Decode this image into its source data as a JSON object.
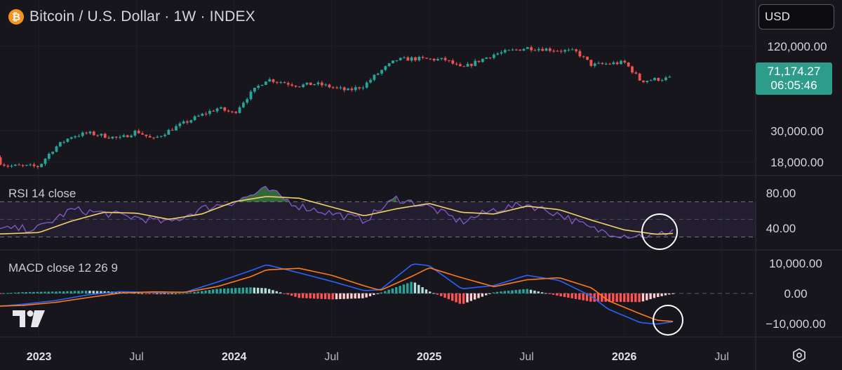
{
  "header": {
    "title": "Bitcoin / U.S. Dollar · 1W · INDEX",
    "currency": "USD",
    "btc_glyph": "₿"
  },
  "price_tag": {
    "price": "71,174.27",
    "countdown": "06:05:46",
    "color": "#2e9c8a"
  },
  "colors": {
    "up": "#26a69a",
    "down": "#ef5350",
    "rsi": "#7e57c2",
    "rsi_ma": "#f3d266",
    "macd": "#2962ff",
    "signal": "#ff7a1a"
  },
  "chart_data": [
    {
      "type": "candlestick",
      "pane": "price",
      "title": "Bitcoin / U.S. Dollar · 1W · INDEX",
      "scale": "log",
      "yticks": [
        "120,000.00",
        "30,000.00",
        "18,000.00"
      ],
      "ytick_values": [
        120000,
        30000,
        18000
      ],
      "ylim": [
        14500,
        165000
      ],
      "x_ticks": [
        "2023",
        "Jul",
        "2024",
        "Jul",
        "2025",
        "Jul",
        "2026",
        "Jul"
      ],
      "close_anchors": [
        [
          "2022-10",
          19500
        ],
        [
          "2022-11",
          17000
        ],
        [
          "2023-01",
          16800
        ],
        [
          "2023-02",
          23000
        ],
        [
          "2023-03",
          27500
        ],
        [
          "2023-04",
          29000
        ],
        [
          "2023-06",
          26500
        ],
        [
          "2023-07",
          30000
        ],
        [
          "2023-08",
          26000
        ],
        [
          "2023-10",
          34500
        ],
        [
          "2023-12",
          43500
        ],
        [
          "2024-01",
          40000
        ],
        [
          "2024-03",
          70000
        ],
        [
          "2024-05",
          63000
        ],
        [
          "2024-06",
          65000
        ],
        [
          "2024-08",
          58000
        ],
        [
          "2024-09",
          63000
        ],
        [
          "2024-11",
          96000
        ],
        [
          "2024-12",
          98000
        ],
        [
          "2025-02",
          96000
        ],
        [
          "2025-03",
          83000
        ],
        [
          "2025-04",
          94000
        ],
        [
          "2025-05",
          105000
        ],
        [
          "2025-07",
          117000
        ],
        [
          "2025-08",
          115000
        ],
        [
          "2025-09",
          112000
        ],
        [
          "2025-10",
          110000
        ],
        [
          "2025-11",
          88000
        ],
        [
          "2026-01",
          92000
        ],
        [
          "2026-02",
          68000
        ],
        [
          "2026-03",
          70000
        ],
        [
          "2026-04",
          71174.27
        ]
      ],
      "last_price": 71174.27
    },
    {
      "type": "line",
      "pane": "rsi",
      "title": "RSI 14 close",
      "yticks": [
        "80.00",
        "40.00"
      ],
      "ytick_values": [
        80,
        40
      ],
      "bands": [
        70,
        50,
        30
      ],
      "series": [
        {
          "name": "RSI",
          "x": [
            "2022-10",
            "2023-01",
            "2023-03",
            "2023-05",
            "2023-07",
            "2023-09",
            "2023-11",
            "2024-01",
            "2024-03",
            "2024-05",
            "2024-07",
            "2024-09",
            "2024-11",
            "2025-01",
            "2025-03",
            "2025-05",
            "2025-07",
            "2025-09",
            "2025-11",
            "2026-01",
            "2026-03",
            "2026-04"
          ],
          "values": [
            38,
            40,
            61,
            57,
            52,
            46,
            62,
            70,
            84,
            65,
            57,
            49,
            74,
            64,
            47,
            61,
            67,
            56,
            39,
            32,
            31,
            38
          ]
        },
        {
          "name": "RSI MA",
          "x": [
            "2022-10",
            "2023-01",
            "2023-03",
            "2023-05",
            "2023-07",
            "2023-09",
            "2023-11",
            "2024-01",
            "2024-03",
            "2024-05",
            "2024-07",
            "2024-09",
            "2024-11",
            "2025-01",
            "2025-03",
            "2025-05",
            "2025-07",
            "2025-09",
            "2025-11",
            "2026-01",
            "2026-03",
            "2026-04"
          ],
          "values": [
            33,
            35,
            48,
            58,
            57,
            50,
            56,
            70,
            76,
            74,
            64,
            54,
            62,
            68,
            58,
            56,
            65,
            61,
            49,
            38,
            33,
            34
          ]
        }
      ]
    },
    {
      "type": "line",
      "pane": "macd",
      "title": "MACD close 12 26 9",
      "yticks": [
        "10,000.00",
        "0.00",
        "−10,000.00"
      ],
      "ytick_values": [
        10000,
        0,
        -10000
      ],
      "series": [
        {
          "name": "MACD",
          "x": [
            "2022-10",
            "2022-12",
            "2023-02",
            "2023-04",
            "2023-06",
            "2023-08",
            "2023-10",
            "2023-12",
            "2024-02",
            "2024-03",
            "2024-05",
            "2024-07",
            "2024-09",
            "2024-10",
            "2024-12",
            "2025-01",
            "2025-03",
            "2025-05",
            "2025-07",
            "2025-09",
            "2025-11",
            "2025-12",
            "2026-02",
            "2026-03",
            "2026-04"
          ],
          "values": [
            -4500,
            -3600,
            -2400,
            -500,
            600,
            300,
            400,
            3800,
            7500,
            9500,
            6800,
            4000,
            900,
            1200,
            9800,
            9200,
            1500,
            2600,
            6000,
            4300,
            -1000,
            -5200,
            -9700,
            -10200,
            -9400
          ]
        },
        {
          "name": "Signal",
          "x": [
            "2022-10",
            "2022-12",
            "2023-02",
            "2023-04",
            "2023-06",
            "2023-08",
            "2023-10",
            "2023-12",
            "2024-02",
            "2024-03",
            "2024-05",
            "2024-07",
            "2024-09",
            "2024-10",
            "2024-12",
            "2025-01",
            "2025-03",
            "2025-05",
            "2025-07",
            "2025-09",
            "2025-11",
            "2025-12",
            "2026-02",
            "2026-03",
            "2026-04"
          ],
          "values": [
            -4300,
            -4000,
            -3000,
            -1400,
            100,
            500,
            350,
            2300,
            5500,
            7800,
            8300,
            6000,
            2500,
            1000,
            5800,
            8500,
            5200,
            2200,
            4500,
            5200,
            1800,
            -2400,
            -6800,
            -8900,
            -9300
          ]
        }
      ]
    }
  ]
}
